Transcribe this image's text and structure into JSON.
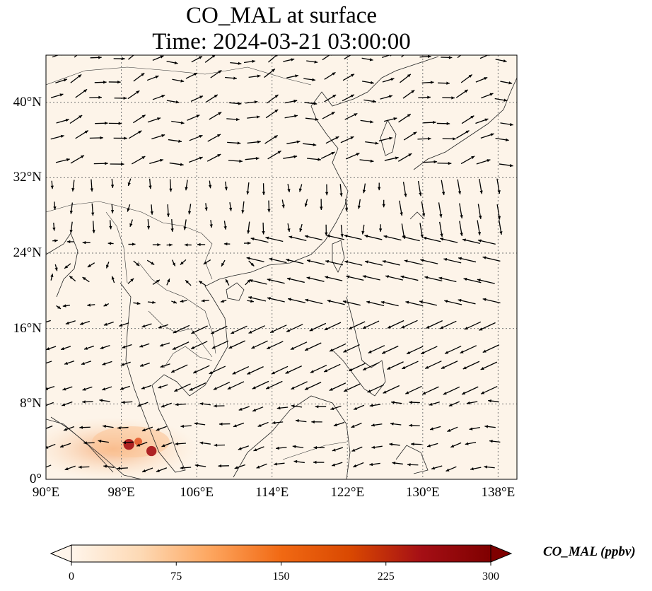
{
  "figure": {
    "title_line1": "CO_MAL at surface",
    "title_line2": "Time: 2024-03-21 03:00:00"
  },
  "map": {
    "lon_range": [
      90,
      140
    ],
    "lat_range": [
      0,
      45
    ],
    "x_ticks": [
      {
        "label": "90°E",
        "lon": 90
      },
      {
        "label": "98°E",
        "lon": 98
      },
      {
        "label": "106°E",
        "lon": 106
      },
      {
        "label": "114°E",
        "lon": 114
      },
      {
        "label": "122°E",
        "lon": 122
      },
      {
        "label": "130°E",
        "lon": 130
      },
      {
        "label": "138°E",
        "lon": 138
      }
    ],
    "y_ticks": [
      {
        "label": "0°",
        "lat": 0
      },
      {
        "label": "8°N",
        "lat": 8
      },
      {
        "label": "16°N",
        "lat": 16
      },
      {
        "label": "24°N",
        "lat": 24
      },
      {
        "label": "32°N",
        "lat": 32
      },
      {
        "label": "40°N",
        "lat": 40
      }
    ],
    "background_color": "#fdf4e9",
    "hotspots": [
      {
        "lon": 98.8,
        "lat": 3.7,
        "value": 280
      },
      {
        "lon": 101.2,
        "lat": 3.0,
        "value": 250
      },
      {
        "lon": 99.8,
        "lat": 4.0,
        "value": 150
      }
    ]
  },
  "colorbar": {
    "label": "CO_MAL (ppbv)",
    "min": 0,
    "max": 300,
    "ticks": [
      "0",
      "75",
      "150",
      "225",
      "300"
    ],
    "colors": [
      "#fff5eb",
      "#fdd9b4",
      "#fda55e",
      "#f16913",
      "#d94801",
      "#a50f15",
      "#7f0000"
    ]
  }
}
